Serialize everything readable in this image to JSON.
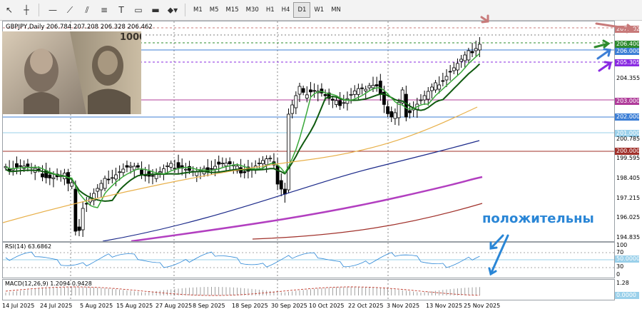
{
  "toolbar": {
    "timeframes": [
      "M1",
      "M5",
      "M15",
      "M30",
      "H1",
      "H4",
      "D1",
      "W1",
      "MN"
    ],
    "active": "D1"
  },
  "chart": {
    "title": "GBPJPY,Daily  206.784 207.208 206.328 206.462",
    "price_levels": [
      {
        "text": "207.302",
        "color": "#c87a7a"
      },
      {
        "text": "206.400",
        "color": "#2e8b2e"
      },
      {
        "text": "206.000",
        "color": "#3d7fd6"
      },
      {
        "text": "205.305",
        "color": "#8a2be2"
      },
      {
        "text": "204.355",
        "color": ""
      },
      {
        "text": "203.000",
        "color": "#b03c9a"
      },
      {
        "text": "202.000",
        "color": "#3d7fd6"
      },
      {
        "text": "201.000",
        "color": "#9ad0ea"
      },
      {
        "text": "200.785",
        "color": ""
      },
      {
        "text": "200.000",
        "color": "#a0302a"
      },
      {
        "text": "199.595",
        "color": ""
      },
      {
        "text": "198.405",
        "color": ""
      },
      {
        "text": "197.215",
        "color": ""
      },
      {
        "text": "196.025",
        "color": ""
      },
      {
        "text": "194.835",
        "color": ""
      }
    ],
    "annotation": "положительны"
  },
  "rsi": {
    "title": "RSI(14) 63.6862",
    "levels": [
      "100",
      "70",
      "50.0000",
      "30",
      "0"
    ]
  },
  "macd": {
    "title": "MACD(12,26,9) 1.2094 0.9428",
    "levels": [
      "1.28",
      "0.0000"
    ]
  },
  "dates": [
    "14 Jul 2025",
    "24 Jul 2025",
    "5 Aug 2025",
    "15 Aug 2025",
    "27 Aug 2025",
    "8 Sep 2025",
    "18 Sep 2025",
    "30 Sep 2025",
    "10 Oct 2025",
    "22 Oct 2025",
    "3 Nov 2025",
    "13 Nov 2025",
    "25 Nov 2025"
  ],
  "colors": {
    "ma_fast": "#1a7a1a",
    "ma_mid": "#e8b04a",
    "ma_blue": "#1c2a8a",
    "ma_magenta": "#b23fc0",
    "ma_red": "#a0302a"
  }
}
